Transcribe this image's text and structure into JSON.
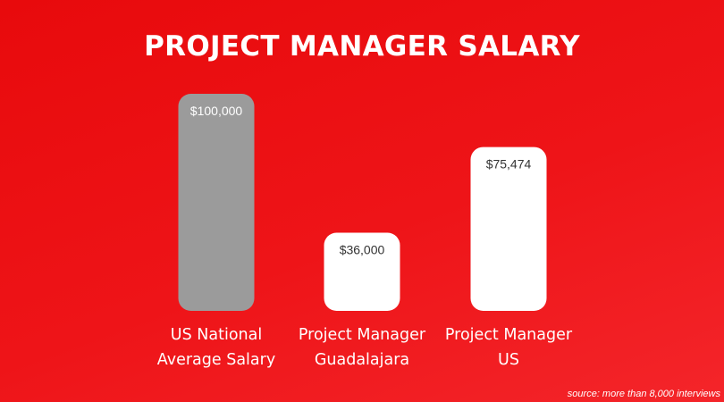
{
  "chart_data": {
    "type": "bar",
    "title": "PROJECT MANAGER SALARY",
    "categories": [
      "US National\nAverage Salary",
      "Project Manager\nGuadalajara",
      "Project Manager\nUS"
    ],
    "values": [
      100000,
      36000,
      75474
    ],
    "data_labels": [
      "$100,000",
      "$36,000",
      "$75,474"
    ],
    "ylim": [
      0,
      100000
    ],
    "grid": false,
    "bar_colors": [
      "#9b9b9b",
      "#ffffff",
      "#ffffff"
    ],
    "label_colors": [
      "#ffffff",
      "#333333",
      "#333333"
    ]
  },
  "footer": {
    "source": "source: more than 8,000 interviews"
  }
}
